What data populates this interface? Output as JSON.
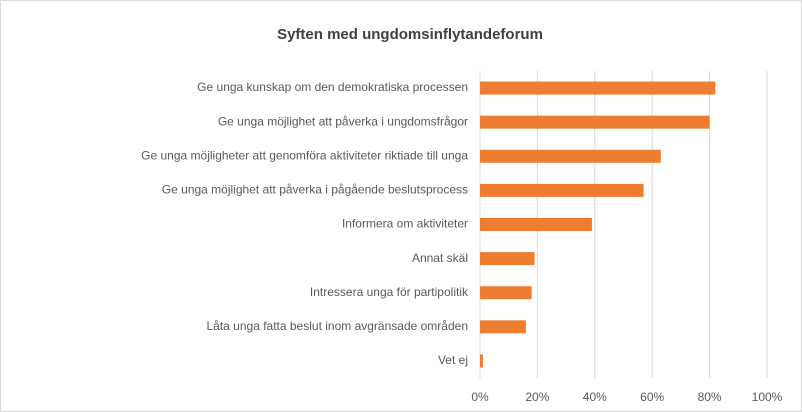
{
  "chart_data": {
    "type": "barh",
    "title": "Syften med ungdomsinflytandeforum",
    "categories": [
      "Ge unga kunskap om den demokratiska processen",
      "Ge unga möjlighet att påverka i ungdomsfrågor",
      "Ge unga möjligheter att genomföra aktiviteter riktiade till unga",
      "Ge unga möjlighet att påverka i pågående beslutsprocess",
      "Informera om aktiviteter",
      "Annat skäl",
      "Intressera unga för partipolitik",
      "Låta unga fatta beslut inom avgränsade områden",
      "Vet ej"
    ],
    "values": [
      82,
      80,
      63,
      57,
      39,
      19,
      18,
      16,
      1
    ],
    "color": "#ed7d31",
    "xlim": [
      0,
      100
    ],
    "xticks": [
      {
        "value": 0,
        "label": "0%"
      },
      {
        "value": 20,
        "label": "20%"
      },
      {
        "value": 40,
        "label": "40%"
      },
      {
        "value": 60,
        "label": "60%"
      },
      {
        "value": 80,
        "label": "80%"
      },
      {
        "value": 100,
        "label": "100%"
      }
    ],
    "grid": true
  }
}
